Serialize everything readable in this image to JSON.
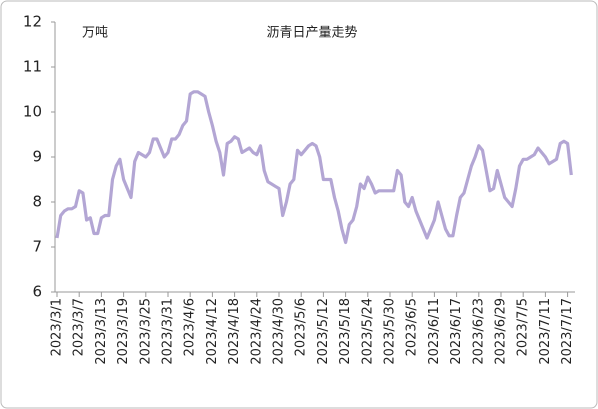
{
  "chart_data": {
    "type": "line",
    "title": "沥青日产量走势",
    "y_label": "万吨",
    "categories": [
      "2023/3/1",
      null,
      null,
      null,
      null,
      null,
      "2023/3/7",
      null,
      null,
      null,
      null,
      null,
      "2023/3/13",
      null,
      null,
      null,
      null,
      null,
      "2023/3/19",
      null,
      null,
      null,
      null,
      null,
      "2023/3/25",
      null,
      null,
      null,
      null,
      null,
      "2023/3/31",
      null,
      null,
      null,
      null,
      null,
      "2023/4/6",
      null,
      null,
      null,
      null,
      null,
      "2023/4/12",
      null,
      null,
      null,
      null,
      null,
      "2023/4/18",
      null,
      null,
      null,
      null,
      null,
      "2023/4/24",
      null,
      null,
      null,
      null,
      null,
      "2023/4/30",
      null,
      null,
      null,
      null,
      null,
      "2023/5/6",
      null,
      null,
      null,
      null,
      null,
      "2023/5/12",
      null,
      null,
      null,
      null,
      null,
      "2023/5/18",
      null,
      null,
      null,
      null,
      null,
      "2023/5/24",
      null,
      null,
      null,
      null,
      null,
      "2023/5/30",
      null,
      null,
      null,
      null,
      null,
      "2023/6/5",
      null,
      null,
      null,
      null,
      null,
      "2023/6/11",
      null,
      null,
      null,
      null,
      null,
      "2023/6/17",
      null,
      null,
      null,
      null,
      null,
      "2023/6/23",
      null,
      null,
      null,
      null,
      null,
      "2023/6/29",
      null,
      null,
      null,
      null,
      null,
      "2023/7/5",
      null,
      null,
      null,
      null,
      null,
      "2023/7/11",
      null,
      null,
      null,
      null,
      null,
      "2023/7/17",
      null
    ],
    "series": [
      {
        "name": "沥青日产量",
        "color": "#b3a6d4",
        "values": [
          7.2,
          7.7,
          7.8,
          7.85,
          7.85,
          7.9,
          8.25,
          8.2,
          7.6,
          7.65,
          7.3,
          7.3,
          7.65,
          7.7,
          7.7,
          8.5,
          8.8,
          8.95,
          8.5,
          8.3,
          8.1,
          8.9,
          9.1,
          9.05,
          9.0,
          9.1,
          9.4,
          9.4,
          9.2,
          9.0,
          9.1,
          9.4,
          9.4,
          9.5,
          9.7,
          9.8,
          10.4,
          10.45,
          10.45,
          10.4,
          10.35,
          10.0,
          9.7,
          9.35,
          9.1,
          8.6,
          9.3,
          9.35,
          9.45,
          9.4,
          9.1,
          9.15,
          9.2,
          9.1,
          9.05,
          9.25,
          8.7,
          8.45,
          8.4,
          8.35,
          8.3,
          7.7,
          8.0,
          8.4,
          8.5,
          9.15,
          9.05,
          9.15,
          9.25,
          9.3,
          9.25,
          9.0,
          8.5,
          8.5,
          8.5,
          8.1,
          7.8,
          7.4,
          7.1,
          7.5,
          7.6,
          7.9,
          8.4,
          8.3,
          8.55,
          8.4,
          8.2,
          8.25,
          8.25,
          8.25,
          8.25,
          8.25,
          8.7,
          8.6,
          8.0,
          7.9,
          8.1,
          7.8,
          7.6,
          7.4,
          7.2,
          7.4,
          7.6,
          8.0,
          7.7,
          7.4,
          7.25,
          7.25,
          7.7,
          8.1,
          8.2,
          8.5,
          8.8,
          9.0,
          9.25,
          9.15,
          8.7,
          8.25,
          8.3,
          8.7,
          8.4,
          8.1,
          8.0,
          7.9,
          8.3,
          8.8,
          8.95,
          8.95,
          9.0,
          9.05,
          9.2,
          9.1,
          9.0,
          8.85,
          8.9,
          8.95,
          9.3,
          9.35,
          9.3,
          8.6
        ]
      }
    ],
    "ylim": [
      6,
      12
    ],
    "yticks": [
      6,
      7,
      8,
      9,
      10,
      11,
      12
    ],
    "grid": false
  }
}
